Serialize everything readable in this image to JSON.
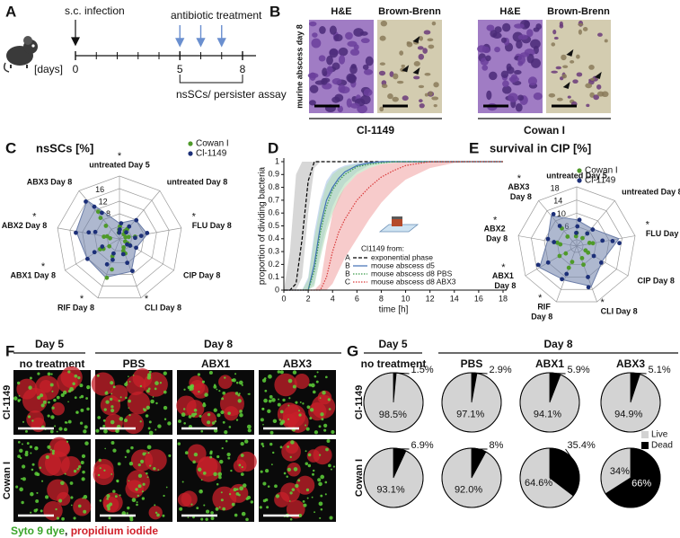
{
  "panel_labels": [
    "A",
    "B",
    "C",
    "D",
    "E",
    "F",
    "G"
  ],
  "timeline": {
    "infection_label": "s.c. infection",
    "treatment_label": "antibiotic treatment",
    "unit_label": "[days]",
    "assay_label": "nsSCs/ persister assay",
    "xlim": [
      0,
      8
    ],
    "xticks": [
      0,
      5,
      8
    ],
    "infection_day": 0,
    "treatment_days": [
      5,
      6,
      7
    ],
    "assay_days": [
      5,
      8
    ]
  },
  "histology": {
    "y_label": "murine abscess day 8",
    "stains": [
      "H&E",
      "Brown-Brenn",
      "H&E",
      "Brown-Brenn"
    ],
    "strains": [
      "Cl-1149",
      "Cowan I"
    ]
  },
  "micrographs": {
    "days": [
      "Day 5",
      "Day 8"
    ],
    "columns": [
      "no treatment",
      "PBS",
      "ABX1",
      "ABX3"
    ],
    "rows": [
      "Cl-1149",
      "Cowan I"
    ],
    "caption": [
      {
        "text": "Syto 9 dye",
        "color": "#3aa52a"
      },
      {
        "text": ", ",
        "color": "#111111"
      },
      {
        "text": "propidium iodide",
        "color": "#d0202a"
      }
    ]
  },
  "chart_data": [
    {
      "type": "radar",
      "title": "nsSCs [%]",
      "axes": [
        "untreated Day 5",
        "untreated Day 8",
        "FLU Day 8",
        "CIP Day 8",
        "CLI Day 8",
        "RIF Day 8",
        "ABX1 Day 8",
        "ABX2 Day 8",
        "ABX3 Day 8"
      ],
      "star": "*",
      "starred": [
        true,
        false,
        true,
        false,
        true,
        true,
        true,
        true,
        false
      ],
      "rlim": [
        0,
        20
      ],
      "rticks": [
        8,
        12,
        16
      ],
      "area_color": "#6b7da8",
      "series": [
        {
          "name": "Cowan I",
          "color": "#4f9a2a",
          "values": [
            [
              2,
              3,
              4
            ],
            [
              3,
              4,
              2
            ],
            [
              2,
              3,
              5
            ],
            [
              2,
              3,
              4
            ],
            [
              3,
              5,
              4
            ],
            [
              10,
              13,
              6
            ],
            [
              4,
              6,
              7
            ],
            [
              3,
              5,
              4
            ],
            [
              6,
              9,
              11
            ]
          ]
        },
        {
          "name": "Cl-1149",
          "color": "#1c2f78",
          "values": [
            [
              2,
              3,
              5
            ],
            [
              5,
              8,
              3
            ],
            [
              9,
              7,
              5
            ],
            [
              6,
              4,
              3
            ],
            [
              11,
              8,
              5
            ],
            [
              7,
              5,
              9
            ],
            [
              12,
              9,
              6
            ],
            [
              14,
              10,
              8
            ],
            [
              16,
              13,
              10
            ]
          ]
        }
      ]
    },
    {
      "type": "line",
      "xlabel": "time [h]",
      "ylabel": "proportion of dividing bacteria",
      "xlim": [
        0,
        18
      ],
      "xticks": [
        0,
        2,
        4,
        6,
        8,
        10,
        12,
        14,
        16,
        18
      ],
      "ylim": [
        0,
        1
      ],
      "yticks": [
        0,
        0.1,
        0.2,
        0.3,
        0.4,
        0.5,
        0.6,
        0.7,
        0.8,
        0.9,
        1
      ],
      "legend_title": "Cl1149 from:",
      "x": [
        0,
        0.5,
        1,
        1.5,
        2,
        2.5,
        3,
        3.5,
        4,
        4.5,
        5,
        6,
        7,
        8,
        9,
        10,
        12,
        14,
        16,
        18
      ],
      "series": [
        {
          "name": "exponential phase",
          "letter": "A",
          "color": "#000000",
          "dash": "dashed",
          "band_color": "#bdbdbd",
          "values": [
            0,
            0,
            0.05,
            0.4,
            0.85,
            1,
            1,
            1,
            1,
            1,
            1,
            1,
            1,
            1,
            1,
            1,
            1,
            1,
            1,
            1
          ],
          "lower": [
            0,
            0,
            0,
            0.1,
            0.6,
            0.95,
            1,
            1,
            1,
            1,
            1,
            1,
            1,
            1,
            1,
            1,
            1,
            1,
            1,
            1
          ],
          "upper": [
            0,
            0.3,
            0.9,
            1,
            1,
            1,
            1,
            1,
            1,
            1,
            1,
            1,
            1,
            1,
            1,
            1,
            1,
            1,
            1,
            1
          ]
        },
        {
          "name": "mouse abscess d5",
          "letter": "B",
          "color": "#3f6fb5",
          "dash": "solid",
          "band_color": "#a9c4e6",
          "values": [
            0,
            0,
            0,
            0,
            0,
            0.2,
            0.5,
            0.7,
            0.8,
            0.87,
            0.92,
            0.97,
            0.99,
            1,
            1,
            1,
            1,
            1,
            1,
            1
          ],
          "lower": [
            0,
            0,
            0,
            0,
            0,
            0.05,
            0.3,
            0.5,
            0.65,
            0.75,
            0.83,
            0.92,
            0.97,
            0.99,
            1,
            1,
            1,
            1,
            1,
            1
          ],
          "upper": [
            0,
            0,
            0,
            0,
            0.1,
            0.45,
            0.7,
            0.85,
            0.92,
            0.95,
            0.97,
            0.99,
            1,
            1,
            1,
            1,
            1,
            1,
            1,
            1
          ]
        },
        {
          "name": "mouse abscess d8 PBS",
          "letter": "B",
          "color": "#3a9a4a",
          "dash": "dotted",
          "band_color": "#b5dcb8",
          "values": [
            0,
            0,
            0,
            0,
            0,
            0.15,
            0.45,
            0.65,
            0.78,
            0.85,
            0.9,
            0.96,
            0.98,
            0.99,
            1,
            1,
            1,
            1,
            1,
            1
          ],
          "lower": [
            0,
            0,
            0,
            0,
            0,
            0.03,
            0.25,
            0.45,
            0.6,
            0.7,
            0.8,
            0.9,
            0.95,
            0.98,
            0.99,
            1,
            1,
            1,
            1,
            1
          ],
          "upper": [
            0,
            0,
            0,
            0,
            0.08,
            0.4,
            0.65,
            0.82,
            0.9,
            0.94,
            0.96,
            0.98,
            0.99,
            1,
            1,
            1,
            1,
            1,
            1,
            1
          ]
        },
        {
          "name": "mouse abscess d8 ABX3",
          "letter": "C",
          "color": "#d93a3a",
          "dash": "dotted",
          "band_color": "#f2a8a8",
          "values": [
            0,
            0,
            0,
            0,
            0,
            0,
            0,
            0.1,
            0.3,
            0.45,
            0.55,
            0.7,
            0.8,
            0.88,
            0.93,
            0.97,
            1,
            1,
            1,
            1
          ],
          "lower": [
            0,
            0,
            0,
            0,
            0,
            0,
            0,
            0,
            0.05,
            0.15,
            0.25,
            0.4,
            0.55,
            0.68,
            0.78,
            0.86,
            0.95,
            0.99,
            1,
            1
          ],
          "upper": [
            0,
            0,
            0,
            0,
            0,
            0,
            0.05,
            0.35,
            0.6,
            0.72,
            0.8,
            0.9,
            0.95,
            0.98,
            0.99,
            1,
            1,
            1,
            1,
            1
          ]
        }
      ]
    },
    {
      "type": "radar",
      "title": "survival in CIP [%]",
      "axes": [
        "untreated Day 5",
        "untreated Day 8",
        "FLU Day 8",
        "CIP Day 8",
        "CLI Day 8",
        "RIF Day 8",
        "ABX1 Day 8",
        "ABX2 Day 8",
        "ABX3 Day 8"
      ],
      "star": "*",
      "starred": [
        false,
        false,
        true,
        false,
        true,
        true,
        true,
        true,
        true
      ],
      "rlim": [
        0,
        18
      ],
      "rticks": [
        6,
        10,
        14,
        18
      ],
      "area_color": "#6b7da8",
      "series": [
        {
          "name": "Cowan I",
          "color": "#4f9a2a",
          "values": [
            [
              3,
              4
            ],
            [
              3,
              5
            ],
            [
              4,
              5
            ],
            [
              3,
              4
            ],
            [
              4,
              6
            ],
            [
              5,
              7
            ],
            [
              4,
              6
            ],
            [
              5,
              6
            ],
            [
              4,
              7
            ]
          ]
        },
        {
          "name": "Cl-1149",
          "color": "#1c2f78",
          "values": [
            [
              4,
              6,
              8
            ],
            [
              5,
              7
            ],
            [
              8,
              11,
              13
            ],
            [
              6,
              9
            ],
            [
              10,
              13
            ],
            [
              9,
              11
            ],
            [
              10,
              13
            ],
            [
              7,
              9
            ],
            [
              8,
              12
            ]
          ]
        }
      ]
    },
    {
      "type": "pie",
      "days": [
        "Day 5",
        "Day 8"
      ],
      "columns": [
        "no treatment",
        "PBS",
        "ABX1",
        "ABX3"
      ],
      "rows": [
        "Cl-1149",
        "Cowan  I"
      ],
      "categories": [
        "Live",
        "Dead"
      ],
      "colors": [
        "#d3d3d3",
        "#000000"
      ],
      "values": [
        [
          [
            98.5,
            1.5
          ],
          [
            97.1,
            2.9
          ],
          [
            94.1,
            5.9
          ],
          [
            94.9,
            5.1
          ]
        ],
        [
          [
            93.1,
            6.9
          ],
          [
            92.0,
            8
          ],
          [
            64.6,
            35.4
          ],
          [
            34,
            66
          ]
        ]
      ],
      "value_labels": [
        [
          [
            "98.5%",
            "1.5%"
          ],
          [
            "97.1%",
            "2.9%"
          ],
          [
            "94.1%",
            "5.9%"
          ],
          [
            "94.9%",
            "5.1%"
          ]
        ],
        [
          [
            "93.1%",
            "6.9%"
          ],
          [
            "92.0%",
            "8%"
          ],
          [
            "64.6%",
            "35.4%"
          ],
          [
            "34%",
            "66%"
          ]
        ]
      ]
    }
  ]
}
